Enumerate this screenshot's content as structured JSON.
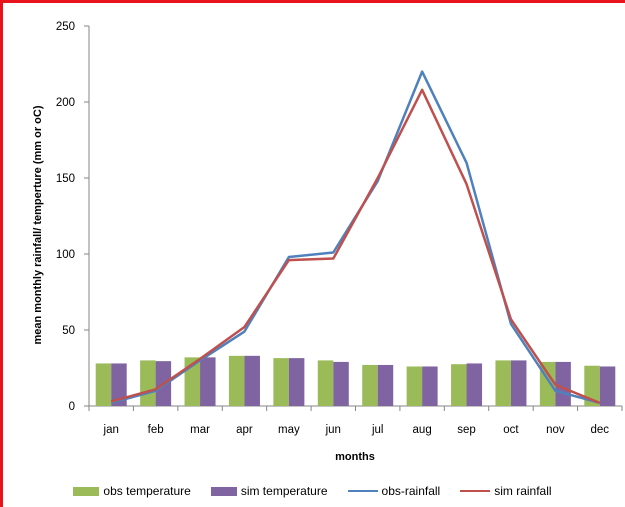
{
  "chart_data": {
    "type": "bar",
    "categories": [
      "jan",
      "feb",
      "mar",
      "apr",
      "may",
      "jun",
      "jul",
      "aug",
      "sep",
      "oct",
      "nov",
      "dec"
    ],
    "xlabel": "months",
    "ylabel": "mean monthly rainfall/ temperture (mm or oC)",
    "ylim": [
      0,
      250
    ],
    "yticks": [
      "0",
      "50",
      "100",
      "150",
      "200",
      "250"
    ],
    "grid": false,
    "legend_position": "bottom",
    "series": [
      {
        "name": "obs temperature",
        "kind": "bar",
        "color": "#9bbb59",
        "values": [
          28,
          30,
          32,
          33,
          31.5,
          30,
          27,
          26,
          27.5,
          30,
          29,
          26.5
        ]
      },
      {
        "name": "sim temperature",
        "kind": "bar",
        "color": "#8064a2",
        "values": [
          28,
          29.5,
          32,
          33,
          31.5,
          29,
          27,
          26,
          28,
          30,
          29,
          26
        ]
      },
      {
        "name": "obs-rainfall",
        "kind": "line",
        "color": "#4f81bd",
        "values": [
          2,
          10,
          30,
          49,
          98,
          101,
          148,
          220,
          160,
          54,
          10,
          2
        ]
      },
      {
        "name": "sim rainfall",
        "kind": "line",
        "color": "#c0504d",
        "values": [
          3,
          11,
          31,
          52,
          96,
          97,
          150,
          208,
          146,
          57,
          14,
          2
        ]
      }
    ]
  }
}
